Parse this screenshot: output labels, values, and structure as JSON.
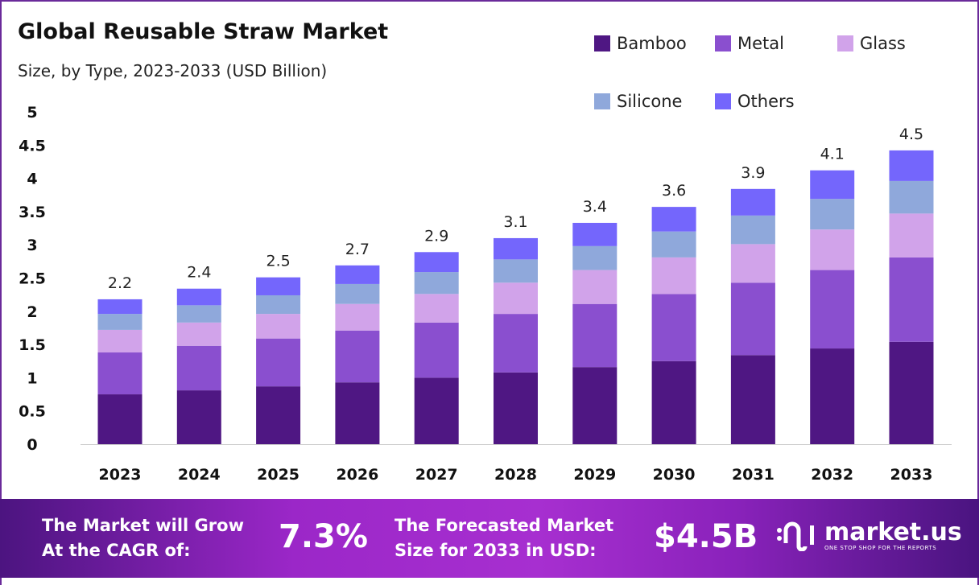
{
  "chart_data": {
    "type": "bar",
    "stacked": true,
    "title": "Global Reusable Straw Market",
    "subtitle": "Size, by Type, 2023-2033 (USD Billion)",
    "categories": [
      "2023",
      "2024",
      "2025",
      "2026",
      "2027",
      "2028",
      "2029",
      "2030",
      "2031",
      "2032",
      "2033"
    ],
    "series": [
      {
        "name": "Bamboo",
        "color": "#4f1783",
        "values": [
          0.75,
          0.81,
          0.87,
          0.93,
          1.0,
          1.08,
          1.16,
          1.25,
          1.34,
          1.44,
          1.54
        ]
      },
      {
        "name": "Metal",
        "color": "#8a4fcf",
        "values": [
          0.63,
          0.67,
          0.72,
          0.78,
          0.83,
          0.88,
          0.95,
          1.01,
          1.09,
          1.18,
          1.27
        ]
      },
      {
        "name": "Glass",
        "color": "#d1a3ea",
        "values": [
          0.34,
          0.35,
          0.37,
          0.4,
          0.43,
          0.47,
          0.51,
          0.55,
          0.58,
          0.61,
          0.66
        ]
      },
      {
        "name": "Silicone",
        "color": "#8fa8db",
        "values": [
          0.24,
          0.26,
          0.28,
          0.3,
          0.33,
          0.35,
          0.36,
          0.39,
          0.43,
          0.46,
          0.49
        ]
      },
      {
        "name": "Others",
        "color": "#7466fc",
        "values": [
          0.22,
          0.25,
          0.27,
          0.28,
          0.3,
          0.32,
          0.35,
          0.37,
          0.4,
          0.43,
          0.46
        ]
      }
    ],
    "totals": [
      "2.2",
      "2.4",
      "2.5",
      "2.7",
      "2.9",
      "3.1",
      "3.4",
      "3.6",
      "3.9",
      "4.1",
      "4.5"
    ],
    "yticks": [
      "0",
      "0.5",
      "1",
      "1.5",
      "2",
      "2.5",
      "3",
      "3.5",
      "4",
      "4.5",
      "5"
    ],
    "ylim": [
      0,
      5
    ],
    "grid": false,
    "legend_position": "top-right"
  },
  "footer": {
    "cagr_label_1": "The Market will Grow",
    "cagr_label_2": "At the CAGR of:",
    "cagr_value": "7.3%",
    "forecast_label_1": "The Forecasted Market",
    "forecast_label_2": "Size for 2033 in USD:",
    "forecast_value": "$4.5B",
    "brand": "market.us",
    "tagline": "ONE STOP SHOP FOR THE REPORTS"
  }
}
